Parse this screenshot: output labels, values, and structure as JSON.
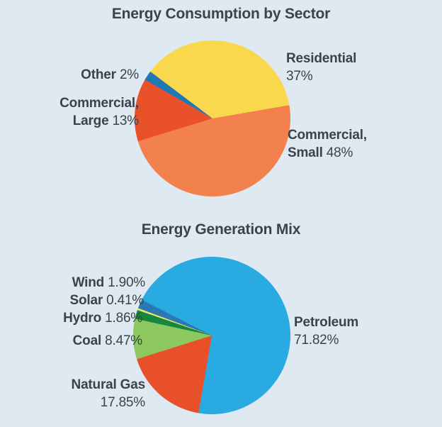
{
  "page": {
    "background": "#dee9f1",
    "text_color": "#3b424c"
  },
  "chart_data": [
    {
      "type": "pie",
      "title": "Energy Consumption by Sector",
      "labels": [
        "Residential",
        "Commercial, Small",
        "Commercial, Large",
        "Other"
      ],
      "values": [
        37,
        48,
        13,
        2
      ],
      "display": [
        "37%",
        "48%",
        "13%",
        "2%"
      ],
      "colors": [
        "#f9d84e",
        "#f3814e",
        "#e8512a",
        "#2079b7"
      ],
      "start_angle_deg": -53,
      "legend": "direct-labels",
      "grid": false
    },
    {
      "type": "pie",
      "title": "Energy Generation Mix",
      "labels": [
        "Petroleum",
        "Natural Gas",
        "Coal",
        "Hydro",
        "Solar",
        "Wind"
      ],
      "values": [
        71.82,
        17.85,
        8.47,
        1.86,
        0.41,
        1.9
      ],
      "display": [
        "71.82%",
        "17.85%",
        "8.47%",
        "1.86%",
        "0.41%",
        "1.90%"
      ],
      "colors": [
        "#29abe2",
        "#e8502a",
        "#8dc75f",
        "#17873f",
        "#eee867",
        "#2a79b5"
      ],
      "start_angle_deg": -63,
      "legend": "direct-labels",
      "grid": false
    }
  ]
}
